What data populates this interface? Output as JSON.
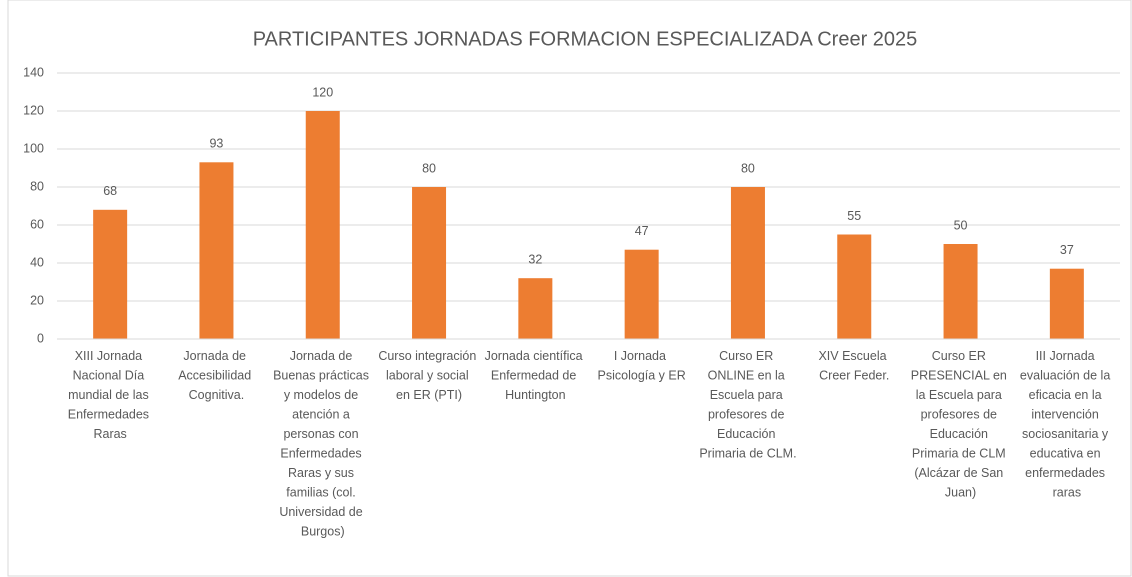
{
  "chart_data": {
    "type": "bar",
    "title": "PARTICIPANTES JORNADAS FORMACION ESPECIALIZADA Creer 2025",
    "categories": [
      "XIII Jornada Nacional Día mundial de las Enfermedades Raras",
      "Jornada de Accesibilidad Cognitiva.",
      "Jornada de Buenas prácticas y modelos de atención a personas con Enfermedades Raras y sus familias (col. Universidad de Burgos)",
      "Curso integración laboral y social en ER (PTI)",
      "Jornada científica Enfermedad de Huntington",
      "I Jornada Psicología y ER",
      "Curso ER ONLINE en la Escuela para profesores de Educación Primaria de CLM.",
      "XIV Escuela Creer Feder.",
      "Curso ER PRESENCIAL en la Escuela para profesores de Educación Primaria de CLM (Alcázar de San Juan)",
      "III Jornada evaluación de la eficacia en la intervención sociosanitaria y educativa en enfermedades raras"
    ],
    "values": [
      68,
      93,
      120,
      80,
      32,
      47,
      80,
      55,
      50,
      37
    ],
    "color": "#ed7d31",
    "ylim": [
      0,
      140
    ],
    "yticks": [
      0,
      20,
      40,
      60,
      80,
      100,
      120,
      140
    ],
    "grid": true
  }
}
